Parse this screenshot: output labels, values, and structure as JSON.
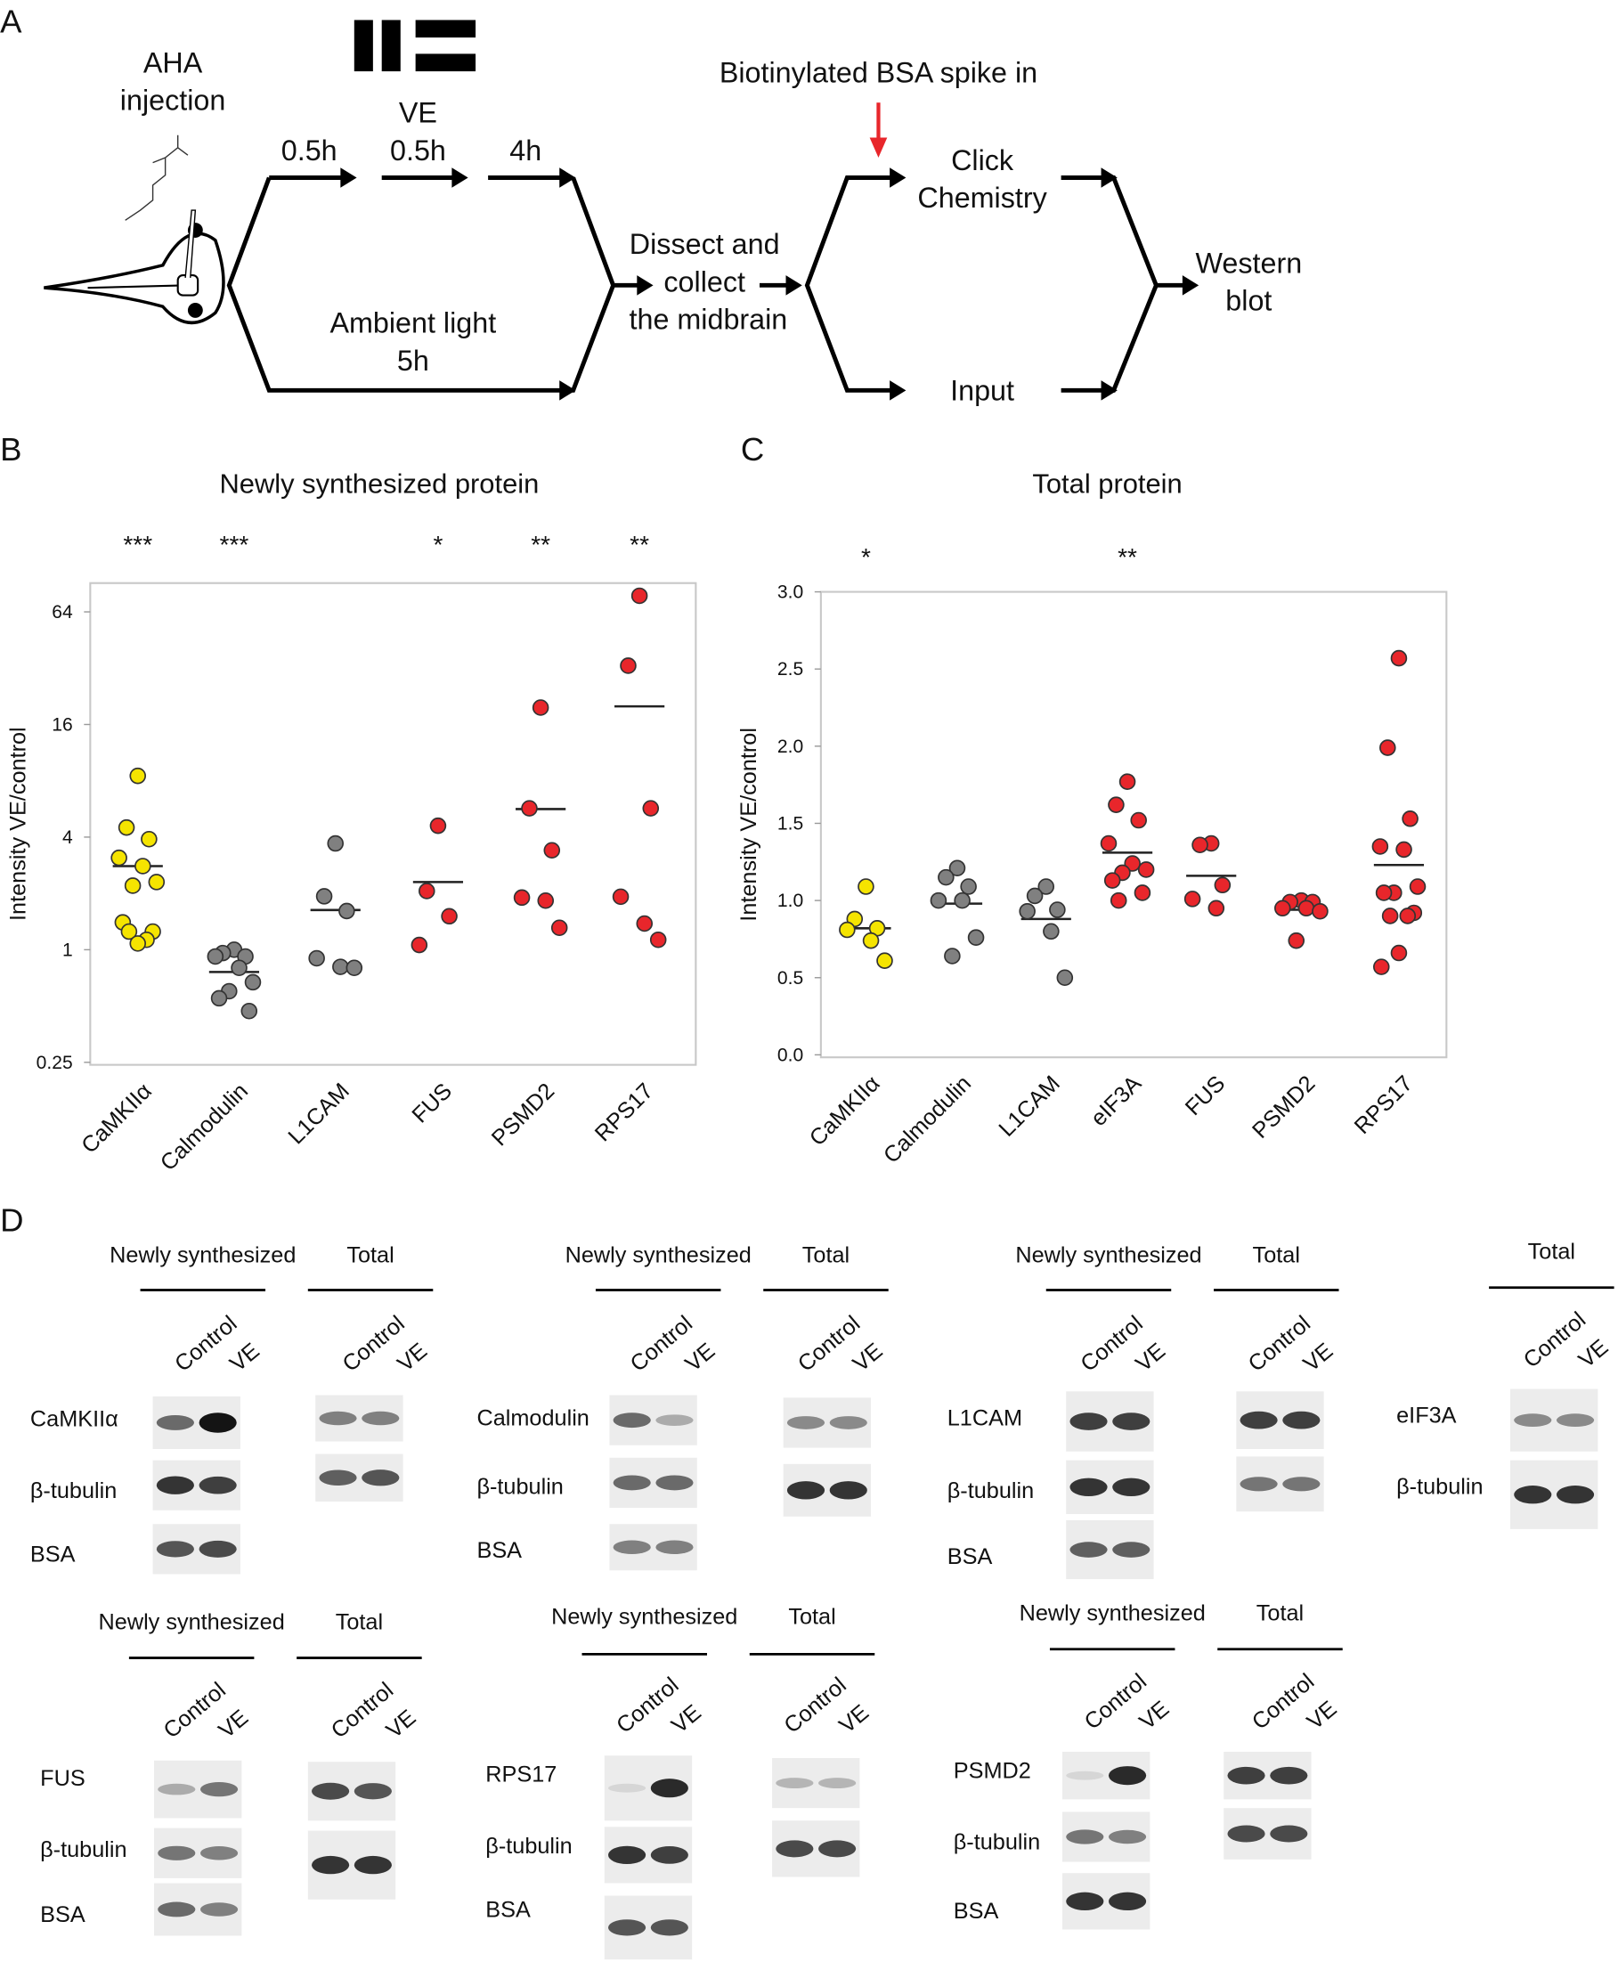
{
  "panel_labels": [
    "A",
    "B",
    "C",
    "D"
  ],
  "schematic": {
    "aha": [
      "AHA",
      "injection"
    ],
    "ve_label": "VE",
    "durations": [
      "0.5h",
      "0.5h",
      "4h"
    ],
    "ambient": [
      "Ambient light",
      "5h"
    ],
    "dissect": [
      "Dissect and",
      "collect",
      "the midbrain"
    ],
    "spike": "Biotinylated BSA spike in",
    "click": [
      "Click",
      "Chemistry"
    ],
    "input": "Input",
    "western": [
      "Western",
      "blot"
    ],
    "icons": [
      "ve-stimulus-bars-icon",
      "aha-molecule-icon",
      "tadpole-icon",
      "red-arrow-icon"
    ],
    "spike_arrow_color": "#e8262b"
  },
  "chart_data": [
    {
      "type": "scatter",
      "title": "Newly synthesized protein",
      "ylabel": "Intensity VE/control",
      "yscale": "log2",
      "ylim": [
        0.25,
        90
      ],
      "yticks": [
        "0.25",
        "1",
        "4",
        "16",
        "64"
      ],
      "grid": false,
      "categories": [
        "CaMKIIα",
        "Calmodulin",
        "L1CAM",
        "FUS",
        "PSMD2",
        "RPS17"
      ],
      "significance": [
        "***",
        "***",
        "",
        "*",
        "**",
        "**"
      ],
      "colors": [
        "#f5e400",
        "#808080",
        "#808080",
        "#e8262b",
        "#e8262b",
        "#e8262b"
      ],
      "values": [
        [
          8.5,
          4.5,
          3.9,
          3.1,
          2.8,
          2.3,
          2.2,
          1.4,
          1.25,
          1.25,
          1.13,
          1.08
        ],
        [
          1.0,
          0.96,
          0.92,
          0.92,
          0.8,
          0.67,
          0.6,
          0.55,
          0.47
        ],
        [
          3.7,
          1.93,
          1.61,
          0.9,
          0.81,
          0.8
        ],
        [
          4.6,
          2.06,
          1.51,
          1.06
        ],
        [
          19.7,
          5.7,
          3.4,
          1.9,
          1.83,
          1.31
        ],
        [
          78,
          33,
          5.7,
          1.92,
          1.38,
          1.13
        ]
      ],
      "means": [
        2.8,
        0.76,
        1.63,
        2.3,
        5.65,
        20
      ]
    },
    {
      "type": "scatter",
      "title": "Total protein",
      "ylabel": "Intensity VE/control",
      "ylim": [
        0,
        3.0
      ],
      "yticks": [
        "0.0",
        "0.5",
        "1.0",
        "1.5",
        "2.0",
        "2.5",
        "3.0"
      ],
      "grid": false,
      "categories": [
        "CaMKIIα",
        "Calmodulin",
        "L1CAM",
        "eIF3A",
        "FUS",
        "PSMD2",
        "RPS17"
      ],
      "significance": [
        "*",
        "",
        "",
        "**",
        "",
        "",
        ""
      ],
      "colors": [
        "#f5e400",
        "#808080",
        "#808080",
        "#e8262b",
        "#e8262b",
        "#e8262b",
        "#e8262b"
      ],
      "values": [
        [
          1.09,
          0.88,
          0.82,
          0.81,
          0.74,
          0.61
        ],
        [
          1.21,
          1.15,
          1.09,
          1.0,
          1.0,
          0.76,
          0.64
        ],
        [
          1.09,
          1.03,
          0.94,
          0.93,
          0.8,
          0.5
        ],
        [
          1.77,
          1.62,
          1.52,
          1.37,
          1.24,
          1.2,
          1.18,
          1.13,
          1.05,
          1.0
        ],
        [
          1.37,
          1.36,
          1.1,
          1.01,
          0.95
        ],
        [
          1.0,
          0.99,
          0.99,
          0.95,
          0.95,
          0.93,
          0.74
        ],
        [
          2.57,
          1.99,
          1.53,
          1.35,
          1.33,
          1.09,
          1.05,
          1.05,
          0.92,
          0.9,
          0.9,
          0.66,
          0.57
        ]
      ],
      "means": [
        0.82,
        0.98,
        0.88,
        1.31,
        1.16,
        0.94,
        1.23
      ]
    }
  ],
  "blots": {
    "newly_label": "Newly synthesized",
    "total_label": "Total",
    "lanes": [
      "Control",
      "VE"
    ],
    "groups": [
      {
        "rows": [
          "CaMKIIα",
          "β-tubulin",
          "BSA"
        ],
        "newly": [
          [
            0.6,
            1.0
          ],
          [
            0.85,
            0.8
          ],
          [
            0.7,
            0.75
          ]
        ],
        "total": [
          [
            0.5,
            0.5
          ],
          [
            0.65,
            0.7
          ]
        ]
      },
      {
        "rows": [
          "Calmodulin",
          "β-tubulin",
          "BSA"
        ],
        "newly": [
          [
            0.6,
            0.3
          ],
          [
            0.6,
            0.6
          ],
          [
            0.5,
            0.5
          ]
        ],
        "total": [
          [
            0.45,
            0.45
          ],
          [
            0.85,
            0.85
          ]
        ]
      },
      {
        "rows": [
          "L1CAM",
          "β-tubulin",
          "BSA"
        ],
        "newly": [
          [
            0.8,
            0.8
          ],
          [
            0.85,
            0.85
          ],
          [
            0.65,
            0.65
          ]
        ],
        "total": [
          [
            0.8,
            0.8
          ],
          [
            0.55,
            0.55
          ]
        ]
      },
      {
        "rows": [
          "eIF3A",
          "β-tubulin"
        ],
        "newly": null,
        "total": [
          [
            0.45,
            0.45
          ],
          [
            0.85,
            0.85
          ]
        ]
      },
      {
        "rows": [
          "FUS",
          "β-tubulin",
          "BSA"
        ],
        "newly": [
          [
            0.3,
            0.55
          ],
          [
            0.55,
            0.5
          ],
          [
            0.6,
            0.5
          ]
        ],
        "total": [
          [
            0.75,
            0.7
          ],
          [
            0.85,
            0.85
          ]
        ]
      },
      {
        "rows": [
          "RPS17",
          "β-tubulin",
          "BSA"
        ],
        "newly": [
          [
            0.1,
            0.9
          ],
          [
            0.85,
            0.8
          ],
          [
            0.7,
            0.7
          ]
        ],
        "total": [
          [
            0.25,
            0.25
          ],
          [
            0.75,
            0.75
          ]
        ]
      },
      {
        "rows": [
          "PSMD2",
          "β-tubulin",
          "BSA"
        ],
        "newly": [
          [
            0.1,
            0.9
          ],
          [
            0.55,
            0.5
          ],
          [
            0.85,
            0.85
          ]
        ],
        "total": [
          [
            0.8,
            0.8
          ],
          [
            0.75,
            0.75
          ]
        ]
      }
    ]
  }
}
